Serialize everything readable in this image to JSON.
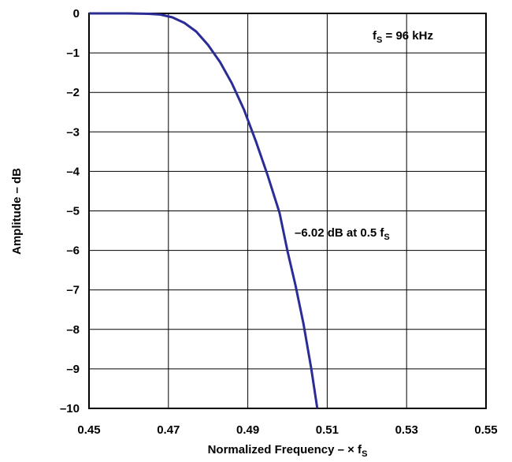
{
  "chart_data": {
    "type": "line",
    "xlabel": {
      "text": "Normalized Frequency – × f",
      "sub": "S"
    },
    "ylabel": "Amplitude – dB",
    "xlim": [
      0.45,
      0.55
    ],
    "ylim": [
      -10,
      0
    ],
    "x_ticks": [
      "0.45",
      "0.47",
      "0.49",
      "0.51",
      "0.53",
      "0.55"
    ],
    "y_ticks": [
      "0",
      "–1",
      "–2",
      "–3",
      "–4",
      "–5",
      "–6",
      "–7",
      "–8",
      "–9",
      "–10"
    ],
    "grid": true,
    "line_color": "#2b2c96",
    "series": [
      {
        "x": [
          0.45,
          0.46,
          0.465,
          0.468,
          0.471,
          0.474,
          0.477,
          0.48,
          0.483,
          0.486,
          0.489,
          0.492,
          0.495,
          0.498,
          0.5,
          0.502,
          0.504,
          0.506,
          0.5075
        ],
        "y": [
          0,
          0,
          -0.01,
          -0.03,
          -0.1,
          -0.24,
          -0.46,
          -0.8,
          -1.23,
          -1.77,
          -2.43,
          -3.23,
          -4.1,
          -5.05,
          -6.02,
          -6.88,
          -7.85,
          -9.0,
          -10.0
        ]
      }
    ],
    "annotations": [
      {
        "text": "f",
        "sub": "S",
        "rest": " = 96 kHz"
      },
      {
        "text": "–6.02 dB at 0.5 f",
        "sub": "S"
      }
    ]
  }
}
